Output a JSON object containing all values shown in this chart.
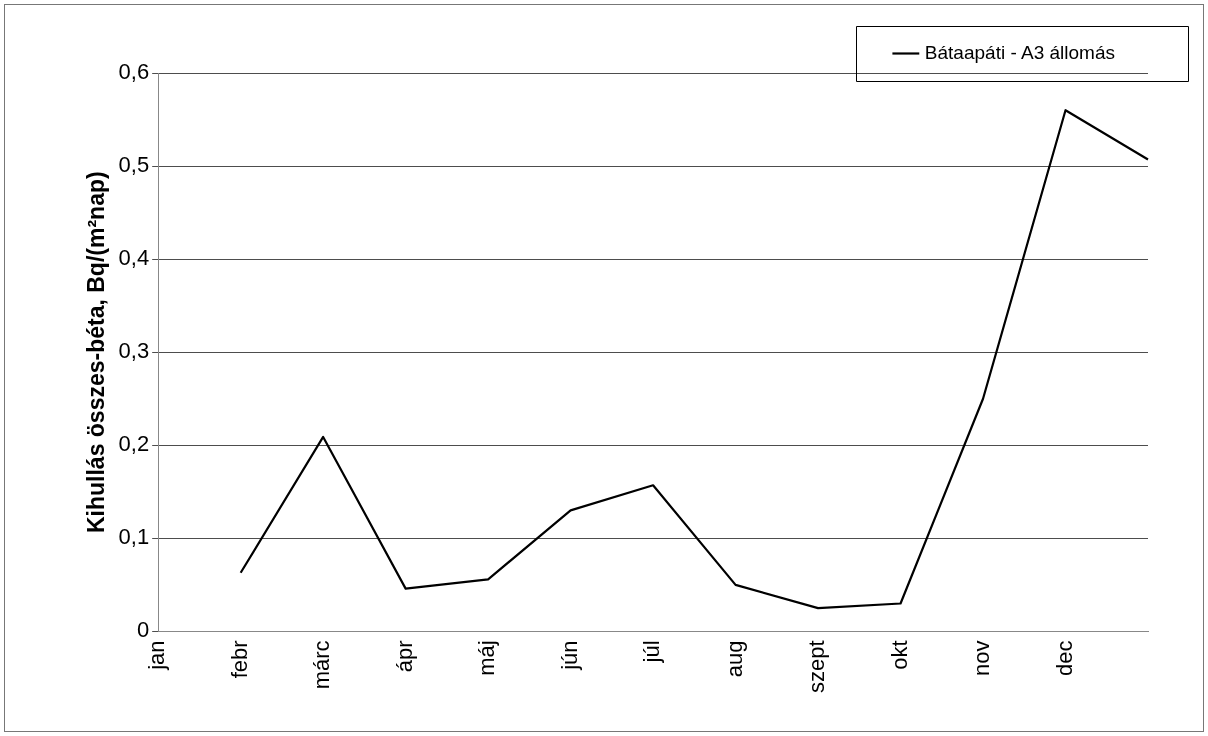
{
  "chart_data": {
    "type": "line",
    "ylabel": "Kihullás összes-béta, Bq/(m²nap)",
    "categories": [
      "jan",
      "febr",
      "márc",
      "ápr",
      "máj",
      "jún",
      "júl",
      "aug",
      "szept",
      "okt",
      "nov",
      "dec",
      null
    ],
    "series": [
      {
        "name": "Bátaapáti - A3 állomás",
        "color": "#000000",
        "values": [
          null,
          0.063,
          0.209,
          0.046,
          0.056,
          0.13,
          0.157,
          0.05,
          0.025,
          0.03,
          0.25,
          0.56,
          0.507
        ]
      }
    ],
    "ylim": [
      0,
      0.6
    ],
    "yticks": [
      {
        "value": 0,
        "label": "0"
      },
      {
        "value": 0.1,
        "label": "0,1"
      },
      {
        "value": 0.2,
        "label": "0,2"
      },
      {
        "value": 0.3,
        "label": "0,3"
      },
      {
        "value": 0.4,
        "label": "0,4"
      },
      {
        "value": 0.5,
        "label": "0,5"
      },
      {
        "value": 0.6,
        "label": "0,6"
      }
    ],
    "grid": "y",
    "legend": "top right",
    "marker": "none",
    "line_style": "solid"
  }
}
